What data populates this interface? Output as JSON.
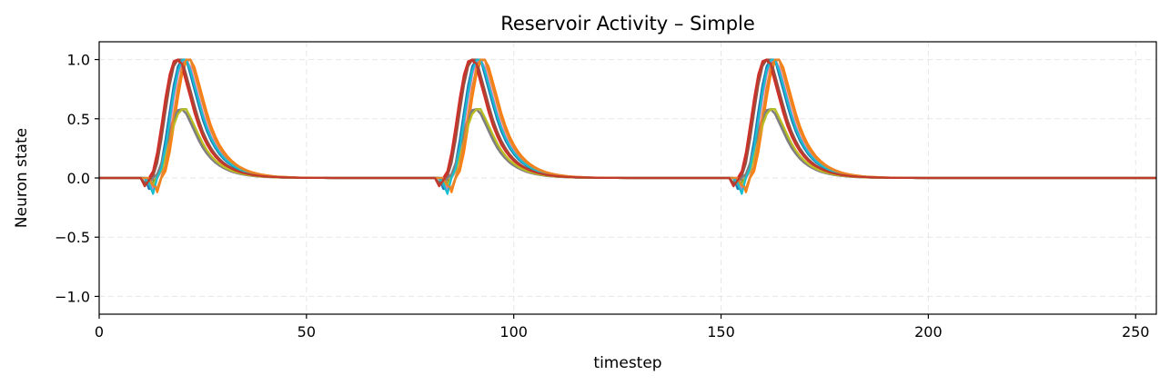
{
  "chart_data": {
    "type": "line",
    "title": "Reservoir Activity – Simple",
    "xlabel": "timestep",
    "ylabel": "Neuron state",
    "xlim": [
      0,
      255
    ],
    "ylim": [
      -1.15,
      1.15
    ],
    "xticks": [
      0,
      50,
      100,
      150,
      200,
      250
    ],
    "yticks": [
      -1.0,
      -0.5,
      0.0,
      0.5,
      1.0
    ],
    "xtick_labels": [
      "0",
      "50",
      "100",
      "150",
      "200",
      "250"
    ],
    "ytick_labels": [
      "−1.0",
      "−0.5",
      "0.0",
      "0.5",
      "1.0"
    ],
    "grid": true,
    "legend": "none",
    "pulse_onsets": [
      10,
      81,
      152
    ],
    "series": [
      {
        "color": "#1f77b4",
        "amplitude": 1.0,
        "delay": 1.5,
        "dip": -0.13
      },
      {
        "color": "#ff7f0e",
        "amplitude": 1.0,
        "delay": 3.0,
        "dip": -0.12
      },
      {
        "color": "#2ca02c",
        "amplitude": 0.58,
        "delay": 1.5,
        "dip": -0.06
      },
      {
        "color": "#d62728",
        "amplitude": 1.0,
        "delay": 0.0,
        "dip": -0.07
      },
      {
        "color": "#9467bd",
        "amplitude": 0.58,
        "delay": 1.0,
        "dip": -0.05
      },
      {
        "color": "#8c564b",
        "amplitude": 1.0,
        "delay": 0.5,
        "dip": -0.06
      },
      {
        "color": "#e377c2",
        "amplitude": 1.0,
        "delay": 2.0,
        "dip": -0.1
      },
      {
        "color": "#7f7f7f",
        "amplitude": 0.58,
        "delay": 1.0,
        "dip": -0.06
      },
      {
        "color": "#bcbd22",
        "amplitude": 0.58,
        "delay": 1.6,
        "dip": -0.07
      },
      {
        "color": "#17becf",
        "amplitude": 1.0,
        "delay": 1.8,
        "dip": -0.14
      },
      {
        "color": "#e6862a",
        "amplitude": 1.0,
        "delay": 2.6,
        "dip": -0.11
      },
      {
        "color": "#c0392b",
        "amplitude": 1.0,
        "delay": 0.2,
        "dip": -0.07
      }
    ]
  }
}
